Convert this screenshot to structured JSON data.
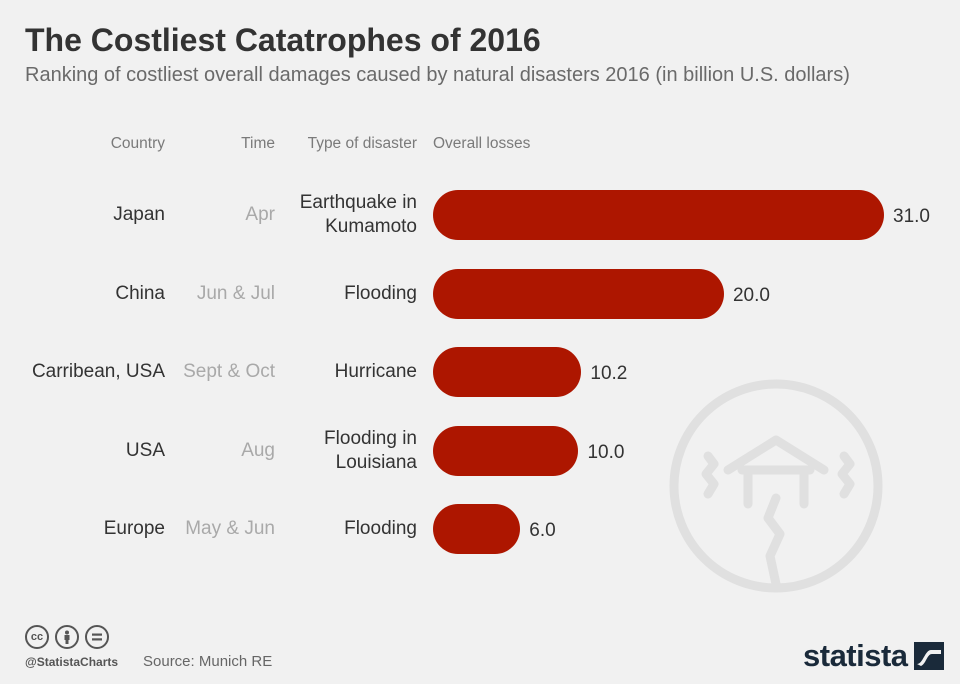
{
  "title": "The Costliest Catatrophes of 2016",
  "subtitle": "Ranking of costliest overall damages caused by natural disasters 2016 (in billion U.S. dollars)",
  "headers": {
    "country": "Country",
    "time": "Time",
    "type": "Type of disaster",
    "losses": "Overall losses"
  },
  "colors": {
    "bar": "#ad1600",
    "background": "#f1f1f1",
    "icon": "#e2e2e2"
  },
  "chart_data": {
    "type": "bar",
    "orientation": "horizontal",
    "title": "The Costliest Catatrophes of 2016",
    "subtitle": "Ranking of costliest overall damages caused by natural disasters 2016 (in billion U.S. dollars)",
    "categories": [
      "Japan",
      "China",
      "Carribean, USA",
      "USA",
      "Europe"
    ],
    "times": [
      "Apr",
      "Jun & Jul",
      "Sept & Oct",
      "Aug",
      "May & Jun"
    ],
    "disaster_types": [
      [
        "Earthquake in",
        "Kumamoto"
      ],
      [
        "Flooding"
      ],
      [
        "Hurricane"
      ],
      [
        "Flooding in",
        "Louisiana"
      ],
      [
        "Flooding"
      ]
    ],
    "values": [
      31.0,
      20.0,
      10.2,
      10.0,
      6.0
    ],
    "value_labels": [
      "31.0",
      "20.0",
      "10.2",
      "10.0",
      "6.0"
    ],
    "xlim": [
      0,
      31.0
    ],
    "grid": false,
    "legend": "none"
  },
  "footer": {
    "handle": "@StatistaCharts",
    "source": "Source: Munich RE",
    "brand": "statista",
    "license_icons": [
      "cc-icon",
      "by-icon",
      "nd-icon"
    ]
  }
}
